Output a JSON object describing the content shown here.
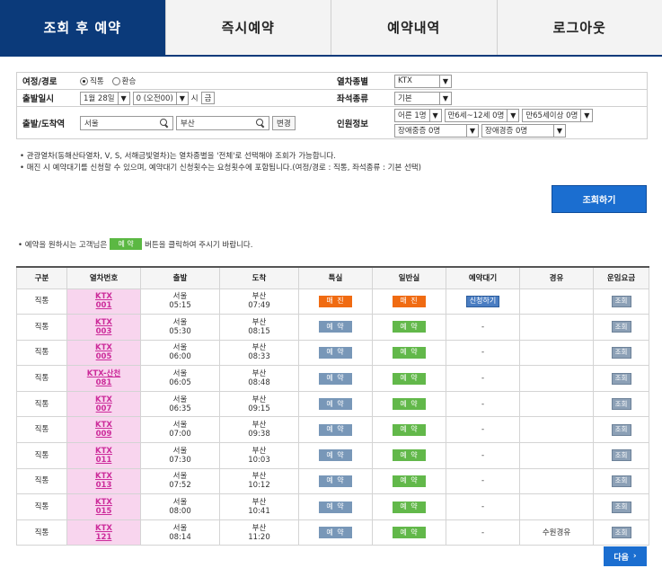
{
  "tabs": [
    "조회 후 예약",
    "즉시예약",
    "예약내역",
    "로그아웃"
  ],
  "form": {
    "trip_label": "여정/경로",
    "trip_options": [
      "직통",
      "환승"
    ],
    "train_type_label": "열차종별",
    "train_type_value": "KTX",
    "date_label": "출발일시",
    "date_value": "1월 28일",
    "hour_value": "0 (오전00)",
    "hour_unit": "시",
    "day_of_week": "금",
    "seat_label": "좌석종류",
    "seat_value": "기본",
    "route_label": "출발/도착역",
    "departure": "서울",
    "arrival": "부산",
    "swap_label": "변경",
    "passenger_label": "인원정보",
    "passengers": [
      "어른 1명",
      "만6세~12세 0명",
      "만65세이상 0명",
      "장애중증 0명",
      "장애경증 0명"
    ]
  },
  "notes": [
    "• 관광열차(동해산타열차, V, S, 서해금빛열차)는 열차종별을 '전체'로 선택해야 조회가 가능합니다.",
    "• 매진 시 예약대기를 신청할 수 있으며, 예약대기 신청횟수는 요청횟수에 포함됩니다.(여정/경로 : 직통, 좌석종류 : 기본 선택)"
  ],
  "search_button": "조회하기",
  "instruction": {
    "before": "• 예약을 원하시는 고객님은",
    "badge": "예 약",
    "after": "버튼을 클릭하여 주시기 바랍니다."
  },
  "table": {
    "headers": [
      "구분",
      "열차번호",
      "출발",
      "도착",
      "특실",
      "일반실",
      "예약대기",
      "경유",
      "운임요금"
    ],
    "rows": [
      {
        "type": "직통",
        "train": [
          "KTX",
          "001"
        ],
        "dep": [
          "서울",
          "05:15"
        ],
        "arr": [
          "부산",
          "07:49"
        ],
        "first": "매 진",
        "first_style": "sold",
        "general": "매 진",
        "general_style": "sold",
        "wait": "신청하기",
        "via": "",
        "fare": "조회"
      },
      {
        "type": "직통",
        "train": [
          "KTX",
          "003"
        ],
        "dep": [
          "서울",
          "05:30"
        ],
        "arr": [
          "부산",
          "08:15"
        ],
        "first": "예 약",
        "first_style": "blue",
        "general": "예 약",
        "general_style": "green",
        "wait": "-",
        "via": "",
        "fare": "조회"
      },
      {
        "type": "직통",
        "train": [
          "KTX",
          "005"
        ],
        "dep": [
          "서울",
          "06:00"
        ],
        "arr": [
          "부산",
          "08:33"
        ],
        "first": "예 약",
        "first_style": "blue",
        "general": "예 약",
        "general_style": "green",
        "wait": "-",
        "via": "",
        "fare": "조회"
      },
      {
        "type": "직통",
        "train": [
          "KTX-산천",
          "081"
        ],
        "dep": [
          "서울",
          "06:05"
        ],
        "arr": [
          "부산",
          "08:48"
        ],
        "first": "예 약",
        "first_style": "blue",
        "general": "예 약",
        "general_style": "green",
        "wait": "-",
        "via": "",
        "fare": "조회"
      },
      {
        "type": "직통",
        "train": [
          "KTX",
          "007"
        ],
        "dep": [
          "서울",
          "06:35"
        ],
        "arr": [
          "부산",
          "09:15"
        ],
        "first": "예 약",
        "first_style": "blue",
        "general": "예 약",
        "general_style": "green",
        "wait": "-",
        "via": "",
        "fare": "조회"
      },
      {
        "type": "직통",
        "train": [
          "KTX",
          "009"
        ],
        "dep": [
          "서울",
          "07:00"
        ],
        "arr": [
          "부산",
          "09:38"
        ],
        "first": "예 약",
        "first_style": "blue",
        "general": "예 약",
        "general_style": "green",
        "wait": "-",
        "via": "",
        "fare": "조회"
      },
      {
        "type": "직통",
        "train": [
          "KTX",
          "011"
        ],
        "dep": [
          "서울",
          "07:30"
        ],
        "arr": [
          "부산",
          "10:03"
        ],
        "first": "예 약",
        "first_style": "blue",
        "general": "예 약",
        "general_style": "green",
        "wait": "-",
        "via": "",
        "fare": "조회"
      },
      {
        "type": "직통",
        "train": [
          "KTX",
          "013"
        ],
        "dep": [
          "서울",
          "07:52"
        ],
        "arr": [
          "부산",
          "10:12"
        ],
        "first": "예 약",
        "first_style": "blue",
        "general": "예 약",
        "general_style": "green",
        "wait": "-",
        "via": "",
        "fare": "조회"
      },
      {
        "type": "직통",
        "train": [
          "KTX",
          "015"
        ],
        "dep": [
          "서울",
          "08:00"
        ],
        "arr": [
          "부산",
          "10:41"
        ],
        "first": "예 약",
        "first_style": "blue",
        "general": "예 약",
        "general_style": "green",
        "wait": "-",
        "via": "",
        "fare": "조회"
      },
      {
        "type": "직통",
        "train": [
          "KTX",
          "121"
        ],
        "dep": [
          "서울",
          "08:14"
        ],
        "arr": [
          "부산",
          "11:20"
        ],
        "first": "예 약",
        "first_style": "blue",
        "general": "예 약",
        "general_style": "green",
        "wait": "-",
        "via": "수원경유",
        "fare": "조회"
      }
    ]
  },
  "next_button": "다음",
  "colors": {
    "tab_active": "#0b3a7a",
    "primary_button": "#1b6ed0",
    "sold_out": "#f06b12",
    "reserve_first": "#7897b8",
    "reserve_general": "#62b84a",
    "train_no_bg": "#f8d5ee"
  },
  "icons": [
    "search-icon",
    "chevron-down-icon",
    "chevron-right-icon",
    "radio-icon"
  ]
}
